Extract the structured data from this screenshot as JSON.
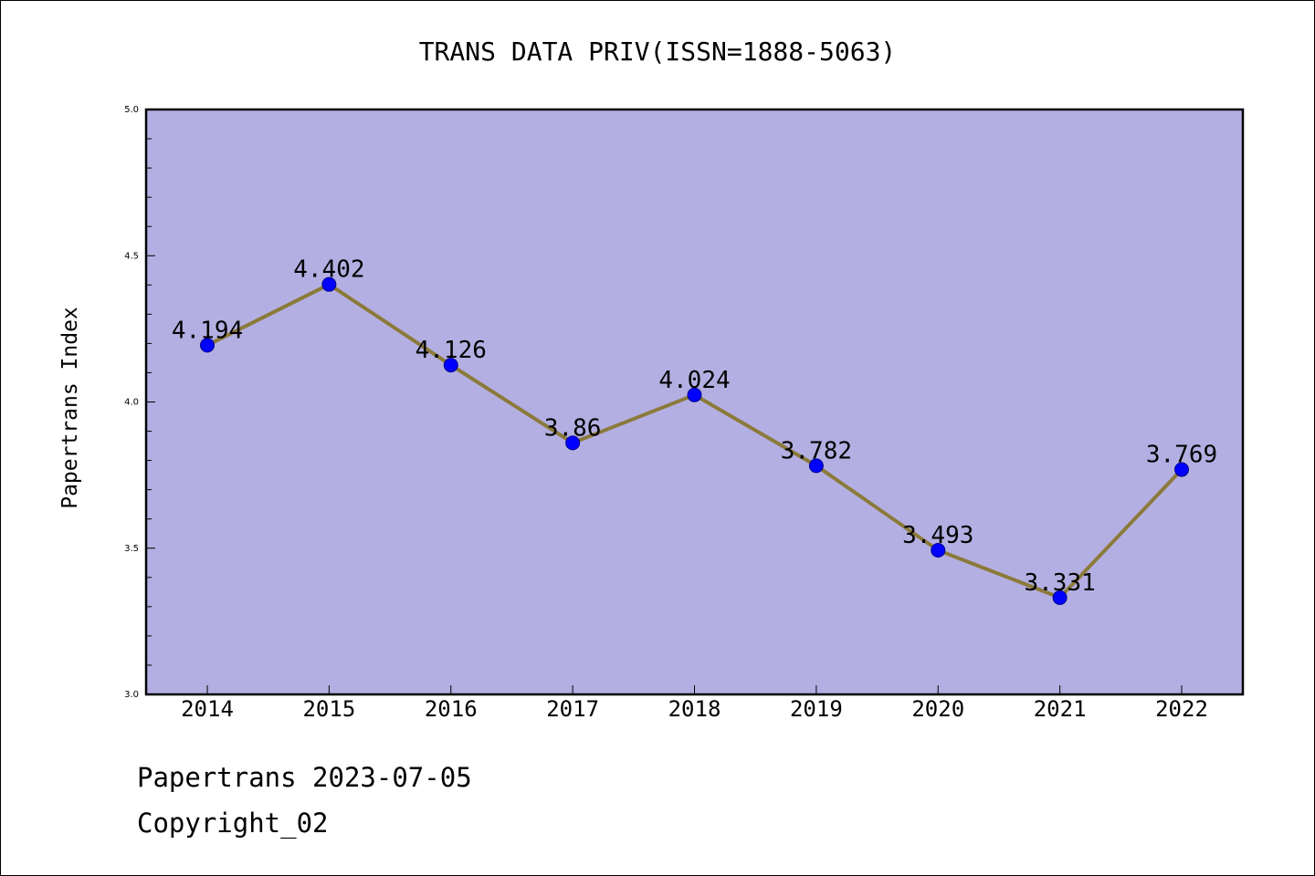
{
  "colors": {
    "plot_background": "#b4afe2",
    "line": "#8b7a3a",
    "marker": "#0000ff",
    "marker_edge": "#00008b",
    "axis": "#000000"
  },
  "chart_data": {
    "type": "line",
    "title": "TRANS DATA PRIV(ISSN=1888-5063)",
    "xlabel": "",
    "ylabel": "Papertrans Index",
    "categories": [
      "2014",
      "2015",
      "2016",
      "2017",
      "2018",
      "2019",
      "2020",
      "2021",
      "2022"
    ],
    "series": [
      {
        "values": [
          4.194,
          4.402,
          4.126,
          3.86,
          4.024,
          3.782,
          3.493,
          3.331,
          3.769
        ],
        "labels": [
          "4.194",
          "4.402",
          "4.126",
          "3.86",
          "4.024",
          "3.782",
          "3.493",
          "3.331",
          "3.769"
        ]
      }
    ],
    "ylim": [
      3.0,
      5.0
    ],
    "yticks": [
      "3.0",
      "3.5",
      "4.0",
      "4.5",
      "5.0"
    ],
    "grid": false,
    "legend": "none"
  },
  "footer": {
    "date_line": "Papertrans 2023-07-05",
    "copyright_line": "Copyright_02"
  }
}
